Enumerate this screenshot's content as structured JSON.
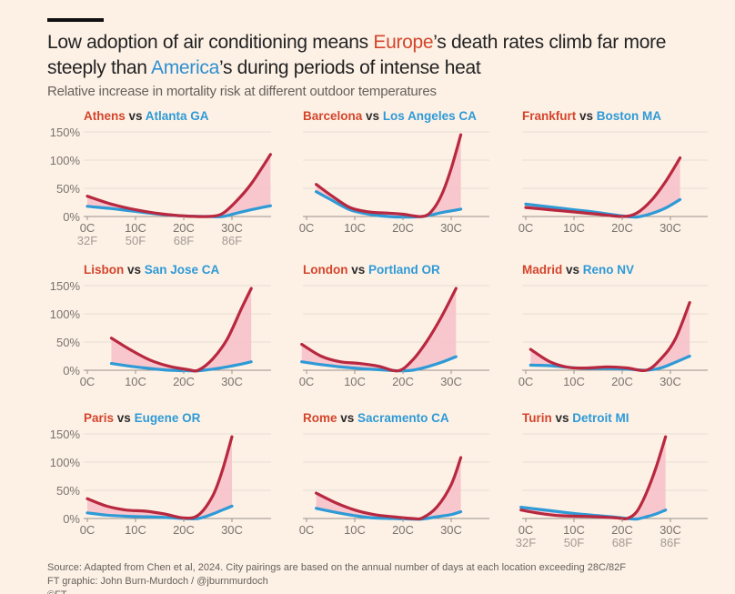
{
  "header": {
    "title_parts": [
      "Low adoption of air conditioning means ",
      "Europe",
      "’s death rates climb far more steeply than ",
      "America",
      "’s during periods of intense heat"
    ],
    "subtitle": "Relative increase in mortality risk at different outdoor temperatures"
  },
  "colors": {
    "europe": "#b8283f",
    "europe_label": "#d4452b",
    "america": "#2e9ad6",
    "fill": "#f7c1ca",
    "grid": "#e8ddd1",
    "axis": "#9a918a",
    "tick_text": "#7a736d"
  },
  "footer": {
    "source": "Source: Adapted from Chen et al, 2024. City pairings are based on the annual number of days at each location exceeding 28C/82F",
    "credit": "FT graphic: John Burn-Murdoch / @jburnmurdoch",
    "copyright": "©FT"
  },
  "chart_data": [
    {
      "type": "line",
      "title": "Athens vs Atlanta GA",
      "xlabel": "Temperature",
      "ylabel": "Relative increase in mortality risk",
      "xlim": [
        0,
        38
      ],
      "ylim": [
        0,
        150
      ],
      "yticks": [
        "0%",
        "50%",
        "100%",
        "150%"
      ],
      "xticks": [
        "0C",
        "10C",
        "20C",
        "30C"
      ],
      "xticks_f": [
        "32F",
        "50F",
        "68F",
        "86F"
      ],
      "series": [
        {
          "name": "Athens",
          "x": [
            0,
            5,
            10,
            15,
            20,
            25,
            28,
            31,
            34,
            38
          ],
          "values": [
            36,
            22,
            12,
            5,
            1,
            0,
            5,
            28,
            58,
            110
          ]
        },
        {
          "name": "Atlanta GA",
          "x": [
            0,
            5,
            10,
            15,
            20,
            25,
            28,
            31,
            34,
            38
          ],
          "values": [
            18,
            14,
            9,
            4,
            1,
            0,
            0,
            6,
            12,
            19
          ]
        }
      ]
    },
    {
      "type": "line",
      "title": "Barcelona vs Los Angeles CA",
      "xlim": [
        2,
        32
      ],
      "ylim": [
        0,
        150
      ],
      "xticks": [
        "0C",
        "10C",
        "20C",
        "30C"
      ],
      "series": [
        {
          "name": "Barcelona",
          "x": [
            2,
            5,
            9,
            13,
            17,
            20,
            24,
            26,
            28,
            30,
            32
          ],
          "values": [
            57,
            38,
            16,
            8,
            6,
            4,
            0,
            10,
            38,
            85,
            145
          ]
        },
        {
          "name": "Los Angeles CA",
          "x": [
            2,
            5,
            9,
            13,
            17,
            20,
            24,
            26,
            28,
            30,
            32
          ],
          "values": [
            44,
            30,
            12,
            4,
            0,
            -1,
            0,
            3,
            7,
            10,
            13
          ]
        }
      ]
    },
    {
      "type": "line",
      "title": "Frankfurt vs Boston MA",
      "xlim": [
        0,
        32
      ],
      "ylim": [
        0,
        150
      ],
      "xticks": [
        "0C",
        "10C",
        "20C",
        "30C"
      ],
      "series": [
        {
          "name": "Frankfurt",
          "x": [
            0,
            5,
            10,
            15,
            20,
            23,
            26,
            29,
            32
          ],
          "values": [
            16,
            12,
            8,
            4,
            0,
            6,
            28,
            62,
            104
          ]
        },
        {
          "name": "Boston MA",
          "x": [
            0,
            5,
            10,
            15,
            20,
            23,
            26,
            29,
            32
          ],
          "values": [
            22,
            17,
            12,
            7,
            1,
            -1,
            5,
            15,
            30
          ]
        }
      ]
    },
    {
      "type": "line",
      "title": "Lisbon vs San Jose CA",
      "xlim": [
        5,
        34
      ],
      "ylim": [
        0,
        150
      ],
      "yticks": [
        "0%",
        "50%",
        "100%",
        "150%"
      ],
      "xticks": [
        "0C",
        "10C",
        "20C",
        "30C"
      ],
      "series": [
        {
          "name": "Lisbon",
          "x": [
            5,
            9,
            13,
            17,
            21,
            23,
            26,
            29,
            32,
            34
          ],
          "values": [
            57,
            36,
            18,
            7,
            1,
            0,
            20,
            55,
            110,
            145
          ]
        },
        {
          "name": "San Jose CA",
          "x": [
            5,
            9,
            13,
            17,
            21,
            23,
            26,
            29,
            32,
            34
          ],
          "values": [
            12,
            7,
            3,
            0,
            -1,
            -1,
            2,
            6,
            11,
            15
          ]
        }
      ]
    },
    {
      "type": "line",
      "title": "London vs Portland OR",
      "xlim": [
        -1,
        31
      ],
      "ylim": [
        0,
        150
      ],
      "xticks": [
        "0C",
        "10C",
        "20C",
        "30C"
      ],
      "series": [
        {
          "name": "London",
          "x": [
            -1,
            3,
            7,
            11,
            15,
            19,
            22,
            25,
            28,
            31
          ],
          "values": [
            46,
            25,
            15,
            12,
            7,
            -1,
            18,
            52,
            95,
            145
          ]
        },
        {
          "name": "Portland OR",
          "x": [
            -1,
            3,
            7,
            11,
            15,
            19,
            22,
            25,
            28,
            31
          ],
          "values": [
            15,
            10,
            6,
            3,
            1,
            -1,
            0,
            6,
            14,
            24
          ]
        }
      ]
    },
    {
      "type": "line",
      "title": "Madrid vs Reno NV",
      "xlim": [
        1,
        34
      ],
      "ylim": [
        0,
        150
      ],
      "xticks": [
        "0C",
        "10C",
        "20C",
        "30C"
      ],
      "series": [
        {
          "name": "Madrid",
          "x": [
            1,
            5,
            9,
            13,
            17,
            21,
            25,
            28,
            31,
            34
          ],
          "values": [
            37,
            15,
            5,
            4,
            6,
            4,
            0,
            20,
            55,
            120
          ]
        },
        {
          "name": "Reno NV",
          "x": [
            1,
            5,
            9,
            13,
            17,
            21,
            25,
            28,
            31,
            34
          ],
          "values": [
            9,
            8,
            5,
            3,
            3,
            2,
            0,
            4,
            14,
            25
          ]
        }
      ]
    },
    {
      "type": "line",
      "title": "Paris vs Eugene OR",
      "xlim": [
        0,
        30
      ],
      "ylim": [
        0,
        150
      ],
      "yticks": [
        "0%",
        "50%",
        "100%",
        "150%"
      ],
      "xticks": [
        "0C",
        "10C",
        "20C",
        "30C"
      ],
      "series": [
        {
          "name": "Paris",
          "x": [
            0,
            4,
            8,
            12,
            16,
            20,
            23,
            26,
            28,
            30
          ],
          "values": [
            35,
            22,
            15,
            13,
            8,
            1,
            6,
            40,
            85,
            145
          ]
        },
        {
          "name": "Eugene OR",
          "x": [
            0,
            4,
            8,
            12,
            16,
            20,
            23,
            26,
            28,
            30
          ],
          "values": [
            10,
            6,
            4,
            3,
            2,
            0,
            0,
            8,
            15,
            22
          ]
        }
      ]
    },
    {
      "type": "line",
      "title": "Rome vs Sacramento CA",
      "xlim": [
        2,
        32
      ],
      "ylim": [
        0,
        150
      ],
      "xticks": [
        "0C",
        "10C",
        "20C",
        "30C"
      ],
      "series": [
        {
          "name": "Rome",
          "x": [
            2,
            6,
            10,
            14,
            18,
            22,
            24,
            27,
            30,
            32
          ],
          "values": [
            45,
            28,
            15,
            7,
            3,
            0,
            1,
            20,
            60,
            108
          ]
        },
        {
          "name": "Sacramento CA",
          "x": [
            2,
            6,
            10,
            14,
            18,
            22,
            24,
            27,
            30,
            32
          ],
          "values": [
            18,
            11,
            5,
            1,
            0,
            -1,
            -1,
            3,
            7,
            12
          ]
        }
      ]
    },
    {
      "type": "line",
      "title": "Turin vs Detroit MI",
      "xlim": [
        -1,
        29
      ],
      "ylim": [
        0,
        150
      ],
      "xticks": [
        "0C",
        "10C",
        "20C",
        "30C"
      ],
      "xticks_f": [
        "32F",
        "50F",
        "68F",
        "86F"
      ],
      "series": [
        {
          "name": "Turin",
          "x": [
            -1,
            3,
            7,
            11,
            15,
            19,
            21,
            23,
            25,
            27,
            29
          ],
          "values": [
            15,
            9,
            5,
            4,
            3,
            1,
            0,
            12,
            45,
            90,
            145
          ]
        },
        {
          "name": "Detroit MI",
          "x": [
            -1,
            3,
            7,
            11,
            15,
            19,
            21,
            23,
            25,
            27,
            29
          ],
          "values": [
            20,
            16,
            12,
            8,
            5,
            2,
            0,
            -1,
            3,
            8,
            15
          ]
        }
      ]
    }
  ]
}
